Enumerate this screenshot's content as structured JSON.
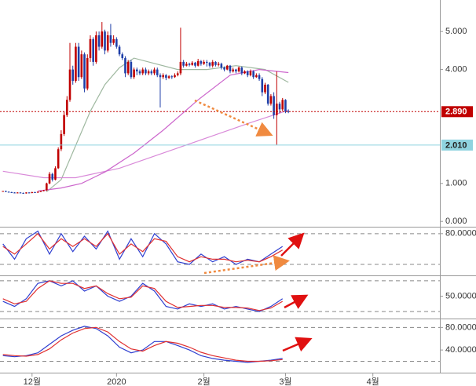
{
  "chart_data": [
    {
      "type": "candlestick",
      "up_color": "#c00000",
      "down_color": "#1f3fa8",
      "xlim": [
        -1,
        150
      ],
      "ylim": [
        -0.12,
        5.83
      ],
      "yticks": [
        {
          "value": 5,
          "label": "5.000"
        },
        {
          "value": 4,
          "label": "4.000"
        },
        {
          "value": 1,
          "label": "1.000"
        },
        {
          "value": 0,
          "label": "0.000"
        }
      ],
      "open": [
        0.79,
        0.8,
        0.78,
        0.77,
        0.76,
        0.75,
        0.76,
        0.75,
        0.74,
        0.76,
        0.75,
        0.77,
        0.76,
        0.78,
        0.8,
        0.82,
        1.0,
        1.25,
        1.1,
        1.4,
        1.9,
        2.3,
        2.8,
        3.2,
        4.0,
        3.7,
        4.6,
        3.8,
        4.4,
        3.5,
        4.3,
        4.8,
        4.2,
        4.9,
        4.6,
        5.0,
        4.5,
        4.9,
        4.7,
        4.8,
        4.6,
        4.4,
        4.3,
        3.9,
        4.2,
        3.8,
        4.0,
        3.95,
        3.9,
        4.0,
        3.9,
        3.95,
        3.9,
        4.0,
        3.85,
        3.8,
        3.85,
        3.78,
        3.82,
        3.8,
        3.85,
        3.9,
        4.2,
        4.1,
        4.15,
        4.12,
        4.18,
        4.1,
        4.22,
        4.15,
        4.2,
        4.18,
        4.1,
        4.2,
        4.12,
        4.15,
        4.05,
        4.0,
        4.1,
        3.95,
        4.0,
        3.95,
        4.05,
        3.9,
        3.95,
        3.85,
        3.95,
        3.8,
        3.85,
        3.75,
        3.4,
        3.6,
        3.1,
        3.3,
        2.8,
        3.1,
        2.95,
        3.2,
        2.9
      ],
      "high": [
        0.8,
        0.81,
        0.79,
        0.78,
        0.77,
        0.77,
        0.77,
        0.76,
        0.77,
        0.77,
        0.78,
        0.78,
        0.79,
        0.81,
        0.83,
        1.02,
        1.3,
        1.28,
        1.45,
        1.95,
        2.4,
        2.9,
        3.3,
        4.7,
        4.1,
        4.7,
        4.7,
        4.5,
        4.45,
        4.4,
        4.9,
        4.85,
        5.0,
        5.0,
        5.25,
        5.05,
        5.0,
        5.2,
        4.9,
        4.85,
        4.65,
        4.45,
        4.35,
        4.25,
        4.25,
        4.05,
        4.05,
        4.0,
        4.05,
        4.05,
        4.0,
        4.0,
        4.05,
        4.05,
        3.9,
        3.9,
        3.88,
        3.85,
        3.85,
        3.9,
        3.95,
        5.1,
        4.25,
        4.2,
        4.18,
        4.22,
        4.2,
        4.28,
        4.25,
        4.25,
        4.25,
        4.2,
        4.25,
        4.22,
        4.2,
        4.18,
        4.08,
        4.12,
        4.12,
        4.05,
        4.02,
        4.08,
        4.08,
        3.98,
        3.98,
        4.0,
        3.98,
        3.9,
        3.9,
        3.8,
        3.65,
        3.62,
        3.35,
        3.4,
        3.95,
        3.15,
        3.25,
        3.22,
        2.95
      ],
      "low": [
        0.78,
        0.77,
        0.76,
        0.75,
        0.74,
        0.74,
        0.74,
        0.73,
        0.73,
        0.74,
        0.74,
        0.75,
        0.75,
        0.77,
        0.79,
        0.8,
        0.98,
        1.05,
        1.08,
        1.38,
        1.85,
        2.25,
        2.75,
        3.15,
        3.6,
        3.65,
        3.7,
        3.75,
        3.4,
        3.45,
        4.2,
        4.1,
        4.15,
        4.5,
        4.55,
        4.4,
        4.45,
        4.6,
        4.65,
        4.55,
        4.35,
        4.25,
        3.8,
        3.85,
        3.75,
        3.75,
        3.85,
        3.85,
        3.85,
        3.85,
        3.85,
        3.85,
        3.85,
        3.8,
        3.0,
        3.75,
        3.72,
        3.75,
        3.75,
        3.78,
        3.82,
        3.85,
        4.05,
        4.08,
        4.08,
        4.1,
        4.05,
        4.08,
        4.1,
        4.12,
        4.08,
        4.05,
        4.05,
        4.08,
        4.08,
        4.0,
        3.95,
        3.98,
        3.9,
        3.92,
        3.9,
        3.92,
        3.85,
        3.88,
        3.8,
        3.82,
        3.75,
        3.78,
        3.7,
        3.3,
        3.35,
        3.05,
        3.05,
        2.7,
        2.01,
        2.85,
        2.9,
        2.85,
        2.85
      ],
      "close": [
        0.8,
        0.78,
        0.77,
        0.76,
        0.75,
        0.76,
        0.75,
        0.74,
        0.76,
        0.75,
        0.77,
        0.76,
        0.78,
        0.8,
        0.82,
        1.0,
        1.25,
        1.1,
        1.4,
        1.9,
        2.3,
        2.8,
        3.2,
        4.0,
        3.7,
        4.6,
        3.8,
        4.4,
        3.5,
        4.3,
        4.8,
        4.2,
        4.9,
        4.6,
        5.0,
        4.5,
        4.9,
        4.7,
        4.8,
        4.6,
        4.4,
        4.3,
        3.9,
        4.2,
        3.8,
        4.0,
        3.95,
        3.9,
        4.0,
        3.9,
        3.95,
        3.9,
        4.0,
        3.85,
        3.8,
        3.85,
        3.78,
        3.82,
        3.8,
        3.85,
        3.9,
        4.2,
        4.1,
        4.15,
        4.12,
        4.18,
        4.1,
        4.22,
        4.15,
        4.2,
        4.18,
        4.1,
        4.2,
        4.12,
        4.15,
        4.05,
        4.0,
        4.1,
        3.95,
        4.0,
        3.95,
        4.05,
        3.9,
        3.95,
        3.85,
        3.95,
        3.8,
        3.85,
        3.75,
        3.4,
        3.6,
        3.1,
        3.3,
        2.8,
        3.1,
        2.95,
        3.2,
        2.9,
        2.89
      ],
      "lines": [
        {
          "color": "#9fb8a0",
          "x": [
            15,
            20,
            25,
            30,
            35,
            40,
            45,
            50,
            60,
            70,
            80,
            90,
            98
          ],
          "values": [
            0.78,
            1.1,
            2.0,
            2.9,
            3.6,
            4.05,
            4.3,
            4.2,
            4.0,
            4.0,
            4.1,
            4.0,
            3.66
          ]
        },
        {
          "color": "#d98ad9",
          "x": [
            0,
            14,
            25,
            40,
            55,
            70,
            85,
            98
          ],
          "values": [
            1.32,
            1.15,
            1.15,
            1.4,
            1.8,
            2.2,
            2.6,
            2.93
          ]
        },
        {
          "color": "#cc66cc",
          "x": [
            12,
            20,
            27,
            35,
            45,
            55,
            67,
            78,
            88,
            98
          ],
          "values": [
            0.8,
            0.88,
            1.0,
            1.3,
            1.8,
            2.4,
            3.2,
            3.85,
            4.0,
            3.92
          ]
        }
      ],
      "markers": [
        {
          "value": 2.89,
          "label": "2.890",
          "color": "#c00000",
          "text_color": "#ffffff"
        },
        {
          "value": 2.01,
          "label": "2.010",
          "color": "#8fd3df",
          "text_color": "#222222"
        }
      ]
    },
    {
      "type": "line",
      "xlim": [
        -1,
        150
      ],
      "ylim": [
        0,
        92
      ],
      "yticks": [
        {
          "value": 80,
          "label": "80.0000"
        }
      ],
      "guides": [
        80,
        20
      ],
      "x": [
        0,
        4,
        8,
        12,
        16,
        20,
        24,
        28,
        32,
        36,
        40,
        44,
        48,
        52,
        56,
        60,
        64,
        68,
        72,
        76,
        80,
        84,
        88,
        92,
        96
      ],
      "series": [
        {
          "color": "#2f3fd0",
          "values": [
            60,
            30,
            70,
            85,
            40,
            80,
            45,
            75,
            50,
            85,
            30,
            70,
            35,
            80,
            60,
            25,
            20,
            40,
            25,
            35,
            20,
            30,
            25,
            40,
            55
          ]
        },
        {
          "color": "#e03030",
          "values": [
            55,
            40,
            60,
            80,
            50,
            70,
            55,
            70,
            55,
            80,
            40,
            60,
            45,
            70,
            65,
            35,
            25,
            35,
            30,
            30,
            25,
            28,
            25,
            35,
            48
          ]
        }
      ]
    },
    {
      "type": "line",
      "xlim": [
        -1,
        150
      ],
      "ylim": [
        8,
        89
      ],
      "yticks": [
        {
          "value": 50,
          "label": "50.0000"
        }
      ],
      "guides": [
        80,
        20
      ],
      "x": [
        0,
        4,
        8,
        12,
        16,
        20,
        24,
        28,
        32,
        36,
        40,
        44,
        48,
        52,
        56,
        60,
        64,
        68,
        72,
        76,
        80,
        84,
        88,
        92,
        96
      ],
      "series": [
        {
          "color": "#2f3fd0",
          "values": [
            40,
            30,
            45,
            75,
            80,
            70,
            80,
            60,
            70,
            50,
            40,
            50,
            75,
            60,
            30,
            25,
            35,
            30,
            35,
            25,
            30,
            25,
            20,
            30,
            45
          ]
        },
        {
          "color": "#e03030",
          "values": [
            45,
            35,
            40,
            65,
            80,
            75,
            75,
            65,
            70,
            55,
            45,
            48,
            70,
            65,
            40,
            28,
            30,
            32,
            32,
            28,
            28,
            27,
            22,
            27,
            40
          ]
        }
      ]
    },
    {
      "type": "line",
      "xlim": [
        -1,
        150
      ],
      "ylim": [
        4,
        93
      ],
      "yticks": [
        {
          "value": 80,
          "label": "80.0000"
        },
        {
          "value": 40,
          "label": "40.0000"
        }
      ],
      "guides": [
        80,
        20
      ],
      "x": [
        0,
        4,
        8,
        12,
        16,
        20,
        24,
        28,
        32,
        36,
        40,
        44,
        48,
        52,
        56,
        60,
        64,
        68,
        72,
        76,
        80,
        84,
        88,
        92,
        96
      ],
      "series": [
        {
          "color": "#2f3fd0",
          "values": [
            30,
            28,
            30,
            35,
            50,
            65,
            75,
            82,
            78,
            65,
            45,
            35,
            40,
            55,
            55,
            48,
            40,
            30,
            25,
            22,
            20,
            18,
            20,
            22,
            25
          ]
        },
        {
          "color": "#e03030",
          "values": [
            32,
            30,
            29,
            32,
            42,
            58,
            70,
            78,
            80,
            72,
            55,
            42,
            38,
            48,
            55,
            52,
            45,
            36,
            30,
            26,
            22,
            20,
            20,
            21,
            23
          ]
        }
      ],
      "xticks": [
        {
          "value": 10,
          "label": "12월"
        },
        {
          "value": 39,
          "label": "2020"
        },
        {
          "value": 69,
          "label": "2월"
        },
        {
          "value": 97,
          "label": "3월"
        },
        {
          "value": 127,
          "label": "4월"
        }
      ]
    }
  ]
}
